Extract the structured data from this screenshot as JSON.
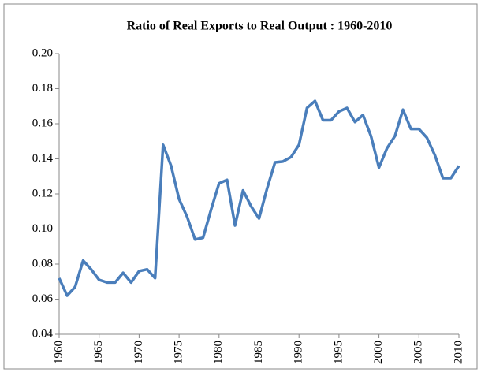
{
  "chart_data": {
    "type": "line",
    "title": "Ratio of Real Exports to Real Output : 1960-2010",
    "x": [
      1960,
      1961,
      1962,
      1963,
      1964,
      1965,
      1966,
      1967,
      1968,
      1969,
      1970,
      1971,
      1972,
      1973,
      1974,
      1975,
      1976,
      1977,
      1978,
      1979,
      1980,
      1981,
      1982,
      1983,
      1984,
      1985,
      1986,
      1987,
      1988,
      1989,
      1990,
      1991,
      1992,
      1993,
      1994,
      1995,
      1996,
      1997,
      1998,
      1999,
      2000,
      2001,
      2002,
      2003,
      2004,
      2005,
      2006,
      2007,
      2008,
      2009,
      2010
    ],
    "series": [
      {
        "name": "Ratio of Real Exports to Real Output",
        "color": "#4a7ebb",
        "values": [
          0.072,
          0.062,
          0.067,
          0.082,
          0.077,
          0.071,
          0.0695,
          0.0695,
          0.075,
          0.0695,
          0.076,
          0.077,
          0.072,
          0.148,
          0.136,
          0.117,
          0.107,
          0.094,
          0.095,
          0.111,
          0.126,
          0.128,
          0.102,
          0.122,
          0.113,
          0.106,
          0.123,
          0.138,
          0.1385,
          0.141,
          0.148,
          0.169,
          0.173,
          0.162,
          0.162,
          0.167,
          0.169,
          0.161,
          0.165,
          0.153,
          0.135,
          0.146,
          0.153,
          0.168,
          0.157,
          0.157,
          0.152,
          0.142,
          0.129,
          0.129,
          0.136
        ]
      }
    ],
    "xlim": [
      1960,
      2010
    ],
    "xticks": [
      1960,
      1965,
      1970,
      1975,
      1980,
      1985,
      1990,
      1995,
      2000,
      2005,
      2010
    ],
    "ylim": [
      0.04,
      0.2
    ],
    "yticks": [
      {
        "value": 0.04,
        "label": "0.04"
      },
      {
        "value": 0.06,
        "label": "0.06"
      },
      {
        "value": 0.08,
        "label": "0.08"
      },
      {
        "value": 0.1,
        "label": "0.10"
      },
      {
        "value": 0.12,
        "label": "0.12"
      },
      {
        "value": 0.14,
        "label": "0.14"
      },
      {
        "value": 0.16,
        "label": "0.16"
      },
      {
        "value": 0.18,
        "label": "0.18"
      },
      {
        "value": 0.2,
        "label": "0.20"
      }
    ],
    "grid": false
  }
}
